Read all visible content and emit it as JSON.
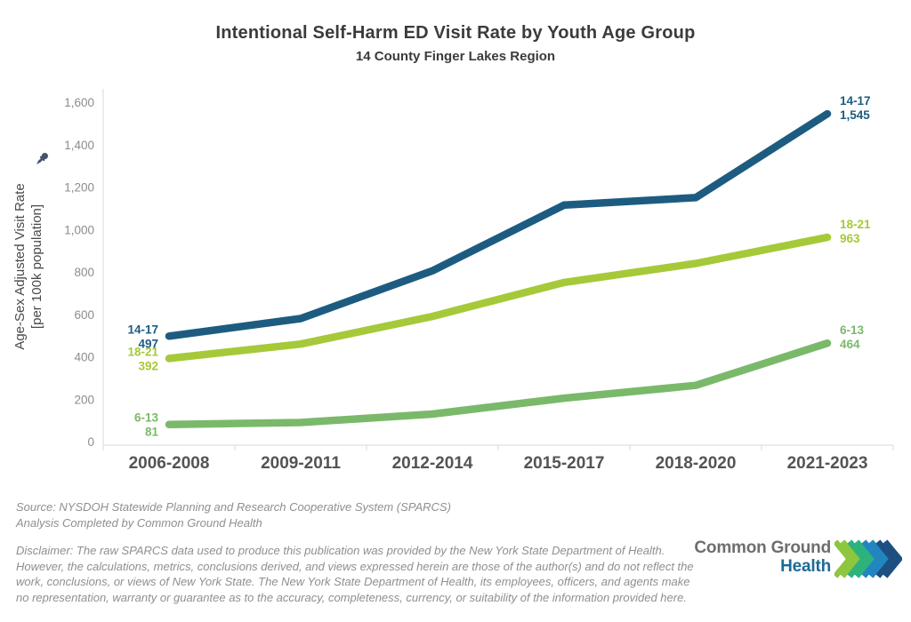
{
  "title": "Intentional Self-Harm ED Visit Rate by Youth Age Group",
  "subtitle": "14 County Finger Lakes Region",
  "y_axis": {
    "label_line1": "Age-Sex Adjusted Visit Rate",
    "label_line2": "[per 100k population]",
    "pin_icon": "pushpin-icon",
    "pin_color": "#44546a"
  },
  "chart_data": {
    "type": "line",
    "title": "Intentional Self-Harm ED Visit Rate by Youth Age Group",
    "subtitle": "14 County Finger Lakes Region",
    "ylabel": "Age-Sex Adjusted Visit Rate [per 100k population]",
    "xlabel": "",
    "grid": false,
    "legend": "inline endpoint labels",
    "ylim": [
      0,
      1600
    ],
    "y_ticks": [
      0,
      200,
      400,
      600,
      800,
      1000,
      1200,
      1400,
      1600
    ],
    "categories": [
      "2006-2008",
      "2009-2011",
      "2012-2014",
      "2015-2017",
      "2018-2020",
      "2021-2023"
    ],
    "series": [
      {
        "name": "14-17",
        "color": "#1d5c80",
        "values": [
          497,
          580,
          805,
          1115,
          1150,
          1545
        ],
        "start_label": "497",
        "end_label": "1,545"
      },
      {
        "name": "18-21",
        "color": "#a6c939",
        "values": [
          392,
          460,
          590,
          750,
          840,
          963
        ],
        "start_label": "392",
        "end_label": "963"
      },
      {
        "name": "6-13",
        "color": "#7ab96a",
        "values": [
          81,
          90,
          130,
          205,
          265,
          464
        ],
        "start_label": "81",
        "end_label": "464"
      }
    ],
    "axis_color": "#d9d9d9",
    "x_tick_color": "#545454",
    "y_tick_color": "#8c8c8c"
  },
  "footer": {
    "source_line1": "Source: NYSDOH Statewide Planning and Research Cooperative System (SPARCS)",
    "source_line2": "Analysis Completed by Common Ground Health",
    "disclaimer": "Disclaimer: The raw SPARCS data used to produce this publication was provided by the New York State Department of Health. However, the calculations, metrics, conclusions derived, and views expressed herein are those of the author(s) and do not reflect the work, conclusions, or views of New York State. The New York State Department of Health, its employees, officers, and agents make no representation, warranty or guarantee as to the accuracy, completeness, currency, or suitability of the information provided here.",
    "logo": {
      "line1": "Common Ground",
      "line2": "Health",
      "chevron_icon": "chevron-right-icon",
      "chevron_colors": [
        "#8dc63f",
        "#2eb27c",
        "#2186c0",
        "#1d5080"
      ]
    }
  }
}
